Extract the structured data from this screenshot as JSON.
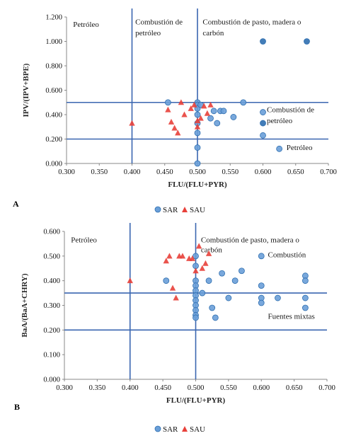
{
  "colors": {
    "sar": "#6a9fd8",
    "sar_dark": "#2f6fb0",
    "sau": "#e8403a",
    "line": "#3a66b0",
    "axis": "#888888"
  },
  "legend": {
    "sar": "SAR",
    "sau": "SAU"
  },
  "chart_data": [
    {
      "type": "scatter",
      "panel": "A",
      "xlabel": "FLU/(FLU+PYR)",
      "ylabel": "IPV/(IPV+BPE)",
      "xlim": [
        0.3,
        0.7
      ],
      "ylim": [
        0.0,
        1.2
      ],
      "x_ticks": [
        "0.300",
        "0.350",
        "0.400",
        "0.450",
        "0.500",
        "0.550",
        "0.600",
        "0.650",
        "0.700"
      ],
      "y_ticks": [
        "0.000",
        "0.200",
        "0.400",
        "0.600",
        "0.800",
        "1.000",
        "1.200"
      ],
      "grid": false,
      "legend_position": "bottom",
      "vertical_lines": [
        0.4,
        0.5
      ],
      "horizontal_lines": [
        0.2,
        0.5
      ],
      "region_labels": [
        {
          "text": "Petróleo",
          "x": 0.31,
          "y": 1.12
        },
        {
          "text": "Combustión de",
          "x": 0.405,
          "y": 1.14
        },
        {
          "text": "petróleo",
          "x": 0.405,
          "y": 1.05
        },
        {
          "text": "Combustión de pasto, madera o",
          "x": 0.508,
          "y": 1.14
        },
        {
          "text": "carbón",
          "x": 0.508,
          "y": 1.05
        },
        {
          "text": "Combustión de",
          "x": 0.606,
          "y": 0.42
        },
        {
          "text": "petróleo",
          "x": 0.606,
          "y": 0.33
        },
        {
          "text": "Petróleo",
          "x": 0.636,
          "y": 0.11
        }
      ],
      "series": [
        {
          "name": "SAR",
          "marker": "circle",
          "x": [
            0.455,
            0.5,
            0.5,
            0.5,
            0.5,
            0.5,
            0.5,
            0.5,
            0.5,
            0.505,
            0.52,
            0.525,
            0.53,
            0.535,
            0.54,
            0.555,
            0.57,
            0.6,
            0.6,
            0.6,
            0.6,
            0.625,
            0.667
          ],
          "y": [
            0.5,
            0.5,
            0.48,
            0.45,
            0.4,
            0.33,
            0.25,
            0.13,
            0.0,
            0.48,
            0.37,
            0.43,
            0.33,
            0.43,
            0.43,
            0.38,
            0.5,
            1.0,
            0.42,
            0.33,
            0.23,
            0.12,
            1.0
          ]
        },
        {
          "name": "SAU",
          "marker": "triangle",
          "x": [
            0.4,
            0.455,
            0.46,
            0.465,
            0.47,
            0.475,
            0.48,
            0.49,
            0.495,
            0.5,
            0.5,
            0.505,
            0.51,
            0.515,
            0.52
          ],
          "y": [
            0.33,
            0.44,
            0.34,
            0.29,
            0.25,
            0.5,
            0.4,
            0.45,
            0.48,
            0.35,
            0.3,
            0.37,
            0.47,
            0.41,
            0.48
          ]
        }
      ]
    },
    {
      "type": "scatter",
      "panel": "B",
      "xlabel": "FLU/(FLU+PYR)",
      "ylabel": "BaA/(BaA+CHRY)",
      "xlim": [
        0.3,
        0.7
      ],
      "ylim": [
        0.0,
        0.6
      ],
      "x_ticks": [
        "0.300",
        "0.350",
        "0.400",
        "0.450",
        "0.500",
        "0.550",
        "0.600",
        "0.650",
        "0.700"
      ],
      "y_ticks": [
        "0.000",
        "0.100",
        "0.200",
        "0.300",
        "0.400",
        "0.500",
        "0.600"
      ],
      "grid": false,
      "legend_position": "bottom",
      "vertical_lines": [
        0.4,
        0.5
      ],
      "horizontal_lines": [
        0.2,
        0.35
      ],
      "region_labels": [
        {
          "text": "Petróleo",
          "x": 0.31,
          "y": 0.555
        },
        {
          "text": "Combustión de pasto, madera o",
          "x": 0.508,
          "y": 0.555
        },
        {
          "text": "carbón",
          "x": 0.508,
          "y": 0.515
        },
        {
          "text": "Combustión",
          "x": 0.61,
          "y": 0.495
        },
        {
          "text": "Fuentes mixtas",
          "x": 0.61,
          "y": 0.245
        }
      ],
      "series": [
        {
          "name": "SAR",
          "marker": "circle",
          "x": [
            0.455,
            0.5,
            0.5,
            0.5,
            0.5,
            0.5,
            0.5,
            0.5,
            0.5,
            0.5,
            0.5,
            0.5,
            0.51,
            0.52,
            0.525,
            0.53,
            0.54,
            0.55,
            0.56,
            0.57,
            0.6,
            0.6,
            0.6,
            0.6,
            0.625,
            0.667,
            0.667,
            0.667,
            0.667
          ],
          "y": [
            0.4,
            0.5,
            0.46,
            0.4,
            0.38,
            0.36,
            0.34,
            0.32,
            0.3,
            0.28,
            0.26,
            0.25,
            0.35,
            0.4,
            0.29,
            0.25,
            0.43,
            0.33,
            0.4,
            0.44,
            0.5,
            0.38,
            0.33,
            0.31,
            0.33,
            0.42,
            0.4,
            0.33,
            0.29
          ]
        },
        {
          "name": "SAU",
          "marker": "triangle",
          "x": [
            0.4,
            0.455,
            0.46,
            0.465,
            0.47,
            0.475,
            0.48,
            0.49,
            0.495,
            0.5,
            0.505,
            0.51,
            0.515,
            0.52
          ],
          "y": [
            0.4,
            0.48,
            0.5,
            0.37,
            0.33,
            0.5,
            0.5,
            0.49,
            0.49,
            0.44,
            0.54,
            0.45,
            0.47,
            0.51
          ]
        }
      ]
    }
  ]
}
